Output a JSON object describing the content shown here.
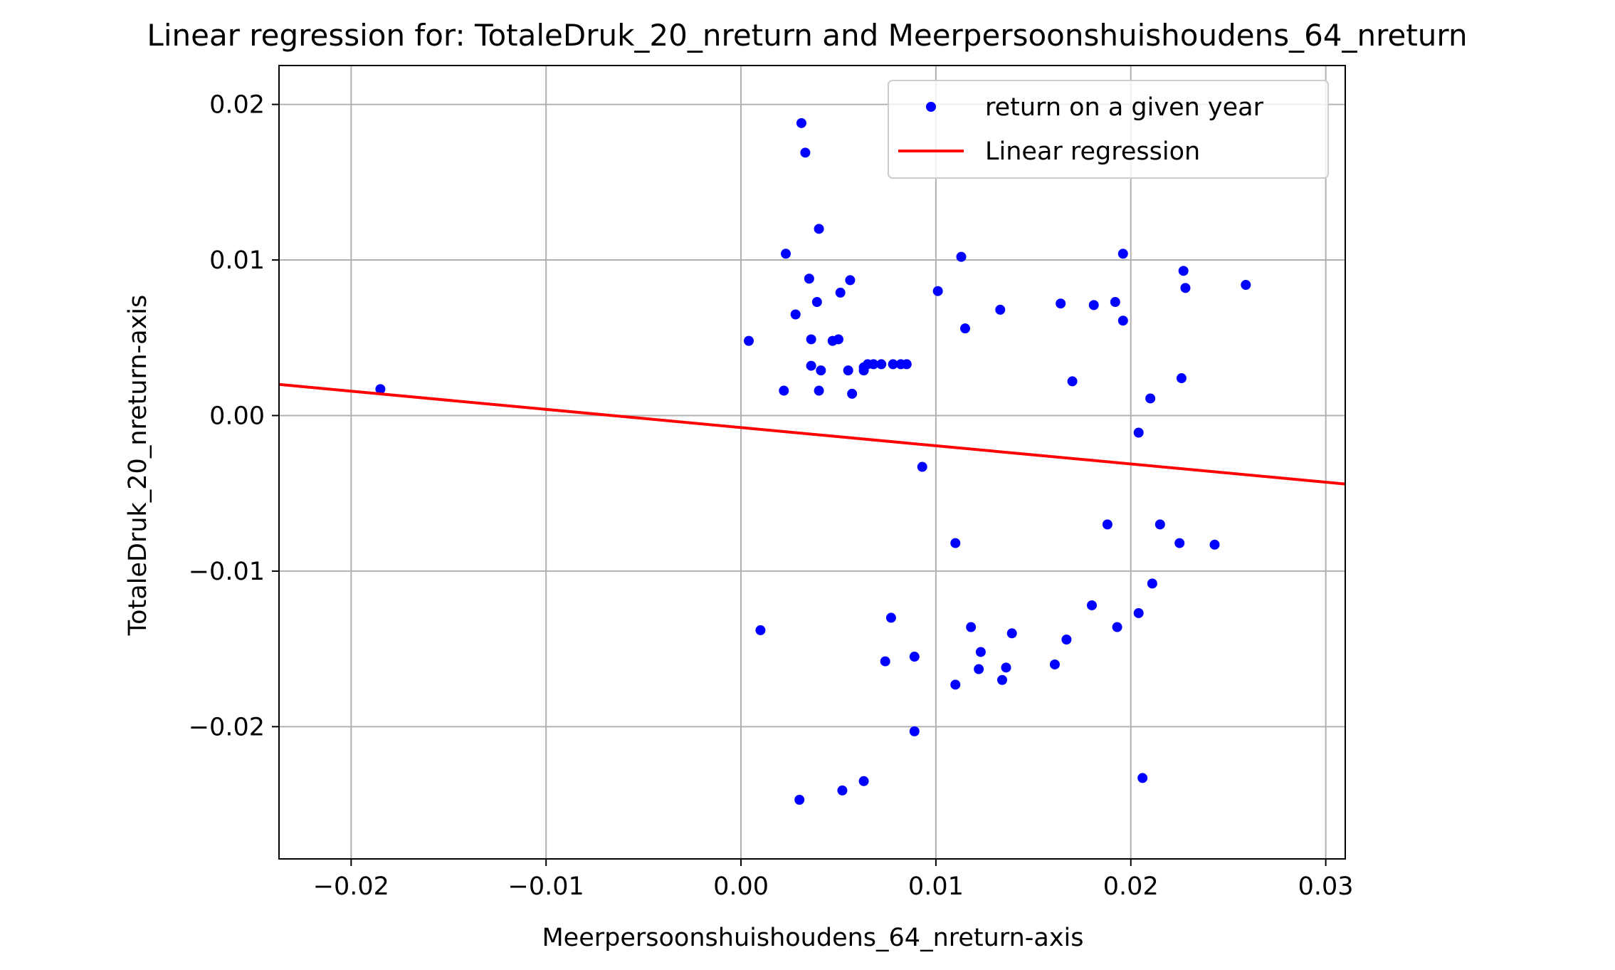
{
  "chart_data": {
    "type": "scatter",
    "title": "Linear regression for: TotaleDruk_20_nreturn and Meerpersoonshuishoudens_64_nreturn",
    "xlabel": "Meerpersoonshuishoudens_64_nreturn-axis",
    "ylabel": "TotaleDruk_20_nreturn-axis",
    "xlim": [
      -0.0237,
      0.031
    ],
    "ylim": [
      -0.0285,
      0.0225
    ],
    "xticks": [
      -0.02,
      -0.01,
      0.0,
      0.01,
      0.02,
      0.03
    ],
    "xtick_labels": [
      "−0.02",
      "−0.01",
      "0.00",
      "0.01",
      "0.02",
      "0.03"
    ],
    "yticks": [
      0.02,
      0.01,
      0.0,
      -0.01,
      -0.02
    ],
    "ytick_labels": [
      "0.02",
      "0.01",
      "0.00",
      "−0.01",
      "−0.02"
    ],
    "grid": true,
    "legend_position": "top-right",
    "series": [
      {
        "name": "return on a given year",
        "kind": "scatter",
        "color": "#0000ff",
        "points": [
          [
            -0.0185,
            0.0017
          ],
          [
            0.0004,
            0.0048
          ],
          [
            0.001,
            -0.0138
          ],
          [
            0.0022,
            0.0016
          ],
          [
            0.0023,
            0.0104
          ],
          [
            0.0028,
            0.0065
          ],
          [
            0.003,
            -0.0247
          ],
          [
            0.0031,
            0.0188
          ],
          [
            0.0033,
            0.0169
          ],
          [
            0.0035,
            0.0088
          ],
          [
            0.0036,
            0.0032
          ],
          [
            0.0036,
            0.0049
          ],
          [
            0.0039,
            0.0073
          ],
          [
            0.004,
            0.0016
          ],
          [
            0.004,
            0.012
          ],
          [
            0.0041,
            0.0029
          ],
          [
            0.0047,
            0.0048
          ],
          [
            0.005,
            0.0049
          ],
          [
            0.0051,
            0.0079
          ],
          [
            0.0052,
            -0.0241
          ],
          [
            0.0055,
            0.0029
          ],
          [
            0.0056,
            0.0087
          ],
          [
            0.0057,
            0.0014
          ],
          [
            0.0063,
            0.0031
          ],
          [
            0.0063,
            0.0029
          ],
          [
            0.0063,
            -0.0235
          ],
          [
            0.0065,
            0.0033
          ],
          [
            0.0068,
            0.0033
          ],
          [
            0.0072,
            0.0033
          ],
          [
            0.0074,
            -0.0158
          ],
          [
            0.0077,
            -0.013
          ],
          [
            0.0078,
            0.0033
          ],
          [
            0.0082,
            0.0033
          ],
          [
            0.0085,
            0.0033
          ],
          [
            0.0089,
            -0.0203
          ],
          [
            0.0089,
            -0.0155
          ],
          [
            0.0093,
            -0.0033
          ],
          [
            0.0101,
            0.008
          ],
          [
            0.011,
            -0.0173
          ],
          [
            0.011,
            -0.0082
          ],
          [
            0.0113,
            0.0102
          ],
          [
            0.0115,
            0.0056
          ],
          [
            0.0118,
            -0.0136
          ],
          [
            0.0122,
            -0.0163
          ],
          [
            0.0123,
            -0.0152
          ],
          [
            0.0133,
            0.0068
          ],
          [
            0.0134,
            -0.017
          ],
          [
            0.0136,
            -0.0162
          ],
          [
            0.0139,
            -0.014
          ],
          [
            0.0161,
            -0.016
          ],
          [
            0.0164,
            0.0072
          ],
          [
            0.0167,
            -0.0144
          ],
          [
            0.017,
            0.0022
          ],
          [
            0.018,
            -0.0122
          ],
          [
            0.0181,
            0.0071
          ],
          [
            0.0188,
            -0.007
          ],
          [
            0.0192,
            0.0073
          ],
          [
            0.0193,
            -0.0136
          ],
          [
            0.0196,
            0.0104
          ],
          [
            0.0196,
            0.0061
          ],
          [
            0.0204,
            -0.0011
          ],
          [
            0.0204,
            -0.0127
          ],
          [
            0.0206,
            -0.0233
          ],
          [
            0.021,
            0.0011
          ],
          [
            0.0211,
            -0.0108
          ],
          [
            0.0215,
            -0.007
          ],
          [
            0.0225,
            -0.0082
          ],
          [
            0.0226,
            0.0024
          ],
          [
            0.0227,
            0.0093
          ],
          [
            0.0228,
            0.0082
          ],
          [
            0.0243,
            -0.0083
          ],
          [
            0.0259,
            0.0084
          ]
        ]
      },
      {
        "name": "Linear regression",
        "kind": "line",
        "color": "#ff0000",
        "x": [
          -0.0237,
          0.031
        ],
        "y": [
          0.002,
          -0.0044
        ]
      }
    ]
  }
}
